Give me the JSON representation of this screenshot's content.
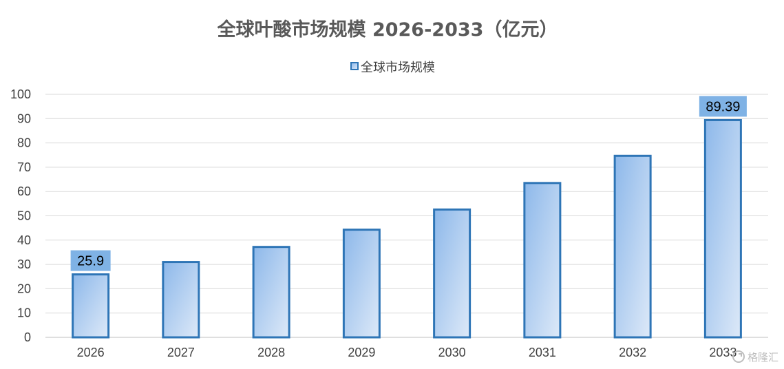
{
  "chart_data": {
    "type": "bar",
    "title": "全球叶酸市场规模 2026-2033（亿元）",
    "categories": [
      "2026",
      "2027",
      "2028",
      "2029",
      "2030",
      "2031",
      "2032",
      "2033"
    ],
    "series": [
      {
        "name": "全球市场规模",
        "values": [
          25.9,
          31.0,
          37.2,
          44.3,
          52.6,
          63.5,
          74.7,
          89.39
        ]
      }
    ],
    "data_labels": [
      {
        "category": "2026",
        "text": "25.9"
      },
      {
        "category": "2033",
        "text": "89.39"
      }
    ],
    "ylim": [
      0,
      100
    ],
    "y_ticks": [
      0,
      10,
      20,
      30,
      40,
      50,
      60,
      70,
      80,
      90,
      100
    ],
    "grid": true,
    "legend_position": "top-center",
    "colors": {
      "bar_fill_top": "#8db8ea",
      "bar_fill_bottom": "#dde9f8",
      "bar_stroke": "#2e75b6",
      "label_box": "#7fb2e5",
      "grid": "#d9d9d9"
    }
  },
  "watermark": {
    "icon": "gelonghui-logo-icon",
    "text": "格隆汇"
  }
}
